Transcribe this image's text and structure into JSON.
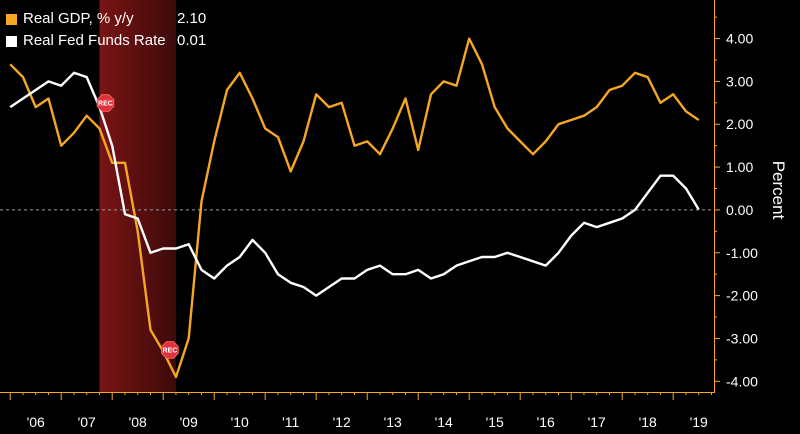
{
  "chart_data": {
    "type": "line",
    "title": "",
    "xlabel": "",
    "ylabel": "Percent",
    "ylim": [
      -4.25,
      4.9
    ],
    "yticks": [
      "4.00",
      "3.00",
      "2.00",
      "1.00",
      "0.00",
      "-1.00",
      "-2.00",
      "-3.00",
      "-4.00"
    ],
    "xticks": [
      "'06",
      "'07",
      "'08",
      "'09",
      "'10",
      "'11",
      "'12",
      "'13",
      "'14",
      "'15",
      "'16",
      "'17",
      "'18",
      "'19"
    ],
    "xlim": [
      2005.8,
      2019.8
    ],
    "recession": {
      "start": 2007.75,
      "end": 2009.25,
      "label": "REC"
    },
    "legend_position": "top-left",
    "series": [
      {
        "name": "Real GDP, % y/y",
        "last_value": "2.10",
        "color": "#f5a623",
        "x": [
          2006.0,
          2006.25,
          2006.5,
          2006.75,
          2007.0,
          2007.25,
          2007.5,
          2007.75,
          2008.0,
          2008.25,
          2008.5,
          2008.75,
          2009.0,
          2009.25,
          2009.5,
          2009.75,
          2010.0,
          2010.25,
          2010.5,
          2010.75,
          2011.0,
          2011.25,
          2011.5,
          2011.75,
          2012.0,
          2012.25,
          2012.5,
          2012.75,
          2013.0,
          2013.25,
          2013.5,
          2013.75,
          2014.0,
          2014.25,
          2014.5,
          2014.75,
          2015.0,
          2015.25,
          2015.5,
          2015.75,
          2016.0,
          2016.25,
          2016.5,
          2016.75,
          2017.0,
          2017.25,
          2017.5,
          2017.75,
          2018.0,
          2018.25,
          2018.5,
          2018.75,
          2019.0,
          2019.25,
          2019.5
        ],
        "values": [
          3.4,
          3.1,
          2.4,
          2.6,
          1.5,
          1.8,
          2.2,
          1.9,
          1.1,
          1.1,
          -0.5,
          -2.8,
          -3.3,
          -3.9,
          -3.0,
          0.2,
          1.6,
          2.8,
          3.2,
          2.6,
          1.9,
          1.7,
          0.9,
          1.6,
          2.7,
          2.4,
          2.5,
          1.5,
          1.6,
          1.3,
          1.9,
          2.6,
          1.4,
          2.7,
          3.0,
          2.9,
          4.0,
          3.4,
          2.4,
          1.9,
          1.6,
          1.3,
          1.6,
          2.0,
          2.1,
          2.2,
          2.4,
          2.8,
          2.9,
          3.2,
          3.1,
          2.5,
          2.7,
          2.3,
          2.1
        ]
      },
      {
        "name": "Real Fed Funds Rate",
        "last_value": "0.01",
        "color": "#ffffff",
        "x": [
          2006.0,
          2006.25,
          2006.5,
          2006.75,
          2007.0,
          2007.25,
          2007.5,
          2007.75,
          2008.0,
          2008.25,
          2008.5,
          2008.75,
          2009.0,
          2009.25,
          2009.5,
          2009.75,
          2010.0,
          2010.25,
          2010.5,
          2010.75,
          2011.0,
          2011.25,
          2011.5,
          2011.75,
          2012.0,
          2012.25,
          2012.5,
          2012.75,
          2013.0,
          2013.25,
          2013.5,
          2013.75,
          2014.0,
          2014.25,
          2014.5,
          2014.75,
          2015.0,
          2015.25,
          2015.5,
          2015.75,
          2016.0,
          2016.25,
          2016.5,
          2016.75,
          2017.0,
          2017.25,
          2017.5,
          2017.75,
          2018.0,
          2018.25,
          2018.5,
          2018.75,
          2019.0,
          2019.25,
          2019.5
        ],
        "values": [
          2.4,
          2.6,
          2.8,
          3.0,
          2.9,
          3.2,
          3.1,
          2.4,
          1.5,
          -0.1,
          -0.2,
          -1.0,
          -0.9,
          -0.9,
          -0.8,
          -1.4,
          -1.6,
          -1.3,
          -1.1,
          -0.7,
          -1.0,
          -1.5,
          -1.7,
          -1.8,
          -2.0,
          -1.8,
          -1.6,
          -1.6,
          -1.4,
          -1.3,
          -1.5,
          -1.5,
          -1.4,
          -1.6,
          -1.5,
          -1.3,
          -1.2,
          -1.1,
          -1.1,
          -1.0,
          -1.1,
          -1.2,
          -1.3,
          -1.0,
          -0.6,
          -0.3,
          -0.4,
          -0.3,
          -0.2,
          0.0,
          0.4,
          0.8,
          0.8,
          0.5,
          0.01
        ]
      }
    ]
  }
}
